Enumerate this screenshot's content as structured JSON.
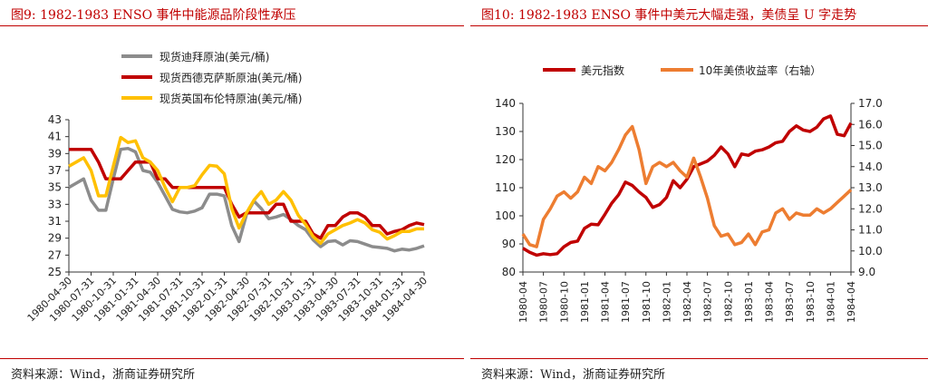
{
  "left": {
    "title": "图9:   1982-1983 ENSO 事件中能源品阶段性承压",
    "source": "资料来源：Wind，浙商证券研究所"
  },
  "right": {
    "title": "图10:   1982-1983 ENSO 事件中美元大幅走强，美债呈 U 字走势",
    "source": "资料来源：Wind，浙商证券研究所"
  },
  "chart_data": [
    {
      "type": "line",
      "title": "",
      "legend_position": "top",
      "ylim": [
        25,
        43
      ],
      "yticks": [
        25,
        27,
        29,
        31,
        33,
        35,
        37,
        39,
        41,
        43
      ],
      "xtick_labels": [
        "1980-04-30",
        "1980-07-31",
        "1980-10-31",
        "1981-01-31",
        "1981-04-30",
        "1981-07-31",
        "1981-10-31",
        "1982-01-31",
        "1982-04-30",
        "1982-07-31",
        "1982-10-31",
        "1983-01-31",
        "1983-04-30",
        "1983-07-31",
        "1983-10-31",
        "1984-01-31",
        "1984-04-30"
      ],
      "x_unit": "month",
      "x_start": "1980-04",
      "series": [
        {
          "name": "现货迪拜原油(美元/桶)",
          "color": "#8c8c8c",
          "values": [
            35.0,
            35.5,
            36.0,
            33.5,
            32.3,
            32.3,
            36.0,
            39.5,
            39.6,
            39.2,
            37.0,
            36.8,
            35.6,
            34.0,
            32.4,
            32.1,
            32.0,
            32.2,
            32.6,
            34.2,
            34.2,
            34.0,
            30.5,
            28.6,
            31.8,
            33.4,
            32.5,
            31.3,
            31.5,
            31.8,
            31.2,
            30.5,
            30.0,
            28.8,
            28.0,
            28.6,
            28.7,
            28.2,
            28.7,
            28.6,
            28.3,
            28.0,
            27.9,
            27.8,
            27.5,
            27.7,
            27.6,
            27.8,
            28.1
          ]
        },
        {
          "name": "现货西德克萨斯原油(美元/桶)",
          "color": "#c00000",
          "values": [
            39.5,
            39.5,
            39.5,
            39.5,
            38.0,
            36.0,
            36.0,
            36.0,
            37.0,
            38.0,
            38.0,
            38.0,
            36.0,
            36.0,
            35.0,
            35.0,
            35.0,
            35.0,
            35.0,
            35.0,
            35.0,
            35.0,
            33.0,
            31.5,
            32.0,
            32.0,
            32.0,
            32.0,
            33.0,
            33.0,
            31.0,
            31.0,
            31.0,
            29.5,
            29.0,
            30.5,
            30.5,
            31.5,
            32.0,
            32.0,
            31.5,
            30.5,
            30.5,
            29.5,
            29.8,
            30.0,
            30.5,
            30.8,
            30.6
          ]
        },
        {
          "name": "现货英国布伦特原油(美元/桶)",
          "color": "#ffc000",
          "values": [
            37.5,
            38.0,
            38.5,
            37.0,
            34.0,
            34.0,
            37.5,
            40.9,
            40.3,
            40.5,
            38.5,
            38.0,
            37.0,
            35.0,
            33.3,
            35.0,
            35.0,
            35.2,
            36.5,
            37.6,
            37.5,
            36.6,
            32.5,
            30.2,
            32.0,
            33.5,
            34.5,
            33.0,
            33.5,
            34.5,
            33.5,
            31.7,
            30.6,
            29.2,
            28.4,
            29.5,
            30.0,
            30.5,
            30.8,
            31.2,
            30.8,
            30.0,
            29.7,
            28.9,
            29.3,
            29.8,
            29.8,
            30.1,
            30.1
          ]
        }
      ]
    },
    {
      "type": "line",
      "title": "",
      "legend_position": "top",
      "ylim": [
        80,
        140
      ],
      "yticks": [
        80,
        90,
        100,
        110,
        120,
        130,
        140
      ],
      "y2lim": [
        9.0,
        17.0
      ],
      "y2ticks": [
        "9.0",
        "10.0",
        "11.0",
        "12.0",
        "13.0",
        "14.0",
        "15.0",
        "16.0",
        "17.0"
      ],
      "xtick_labels": [
        "1980-04",
        "1980-07",
        "1980-10",
        "1981-01",
        "1981-04",
        "1981-07",
        "1981-10",
        "1982-01",
        "1982-04",
        "1982-07",
        "1982-10",
        "1983-01",
        "1983-04",
        "1983-07",
        "1983-10",
        "1984-01",
        "1984-04"
      ],
      "x_unit": "month",
      "x_start": "1980-04",
      "series": [
        {
          "name": "美元指数",
          "axis": "left",
          "color": "#c00000",
          "values": [
            88.5,
            87.0,
            86.0,
            86.5,
            86.2,
            86.5,
            89.0,
            90.5,
            91.0,
            95.5,
            97.0,
            96.8,
            100.5,
            104.5,
            107.5,
            112.0,
            110.8,
            108.5,
            106.5,
            103.0,
            104.0,
            106.5,
            112.5,
            110.0,
            113.0,
            117.5,
            118.5,
            119.5,
            121.5,
            124.5,
            122.0,
            117.5,
            122.0,
            121.5,
            123.0,
            123.5,
            124.5,
            126.0,
            126.5,
            130.0,
            132.0,
            130.5,
            130.0,
            131.5,
            134.5,
            135.5,
            129.0,
            128.5,
            133.0
          ]
        },
        {
          "name": "10年美债收益率（右轴）",
          "axis": "right",
          "color": "#ed7d31",
          "values": [
            10.8,
            10.3,
            10.2,
            11.5,
            12.0,
            12.6,
            12.8,
            12.5,
            12.8,
            13.5,
            13.2,
            14.0,
            13.8,
            14.2,
            14.8,
            15.5,
            15.9,
            14.8,
            13.2,
            14.0,
            14.2,
            14.0,
            14.2,
            13.8,
            13.5,
            14.4,
            13.5,
            12.5,
            11.2,
            10.7,
            10.8,
            10.3,
            10.4,
            10.8,
            10.3,
            10.9,
            11.0,
            11.8,
            12.0,
            11.5,
            11.8,
            11.7,
            11.7,
            12.0,
            11.8,
            12.0,
            12.3,
            12.6,
            12.9
          ]
        }
      ]
    }
  ]
}
